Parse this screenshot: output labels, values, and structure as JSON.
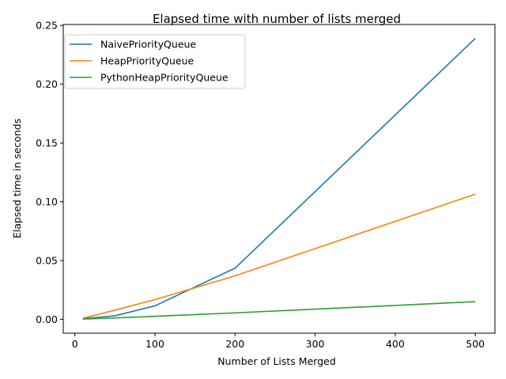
{
  "chart_data": {
    "type": "line",
    "title": "Elapsed time with number of lists merged",
    "xlabel": "Number of Lists Merged",
    "ylabel": "Elapsed time in seconds",
    "xlim": [
      -14.5,
      524.5
    ],
    "ylim": [
      -0.0118,
      0.2508
    ],
    "xticks": [
      0,
      100,
      200,
      300,
      400,
      500
    ],
    "xtick_labels": [
      "0",
      "100",
      "200",
      "300",
      "400",
      "500"
    ],
    "yticks": [
      0.0,
      0.05,
      0.1,
      0.15,
      0.2,
      0.25
    ],
    "ytick_labels": [
      "0.00",
      "0.05",
      "0.10",
      "0.15",
      "0.20",
      "0.25"
    ],
    "grid": false,
    "legend_position": "top-left",
    "x": [
      10,
      50,
      100,
      200,
      500
    ],
    "series": [
      {
        "name": "NaivePriorityQueue",
        "color": "#1f77b4",
        "values": [
          0.0006,
          0.003,
          0.0115,
          0.0435,
          0.239
        ]
      },
      {
        "name": "HeapPriorityQueue",
        "color": "#ff7f0e",
        "values": [
          0.001,
          0.0078,
          0.0168,
          0.037,
          0.1065
        ]
      },
      {
        "name": "PythonHeapPriorityQueue",
        "color": "#2ca02c",
        "values": [
          0.0002,
          0.0012,
          0.0026,
          0.0055,
          0.015
        ]
      }
    ]
  }
}
